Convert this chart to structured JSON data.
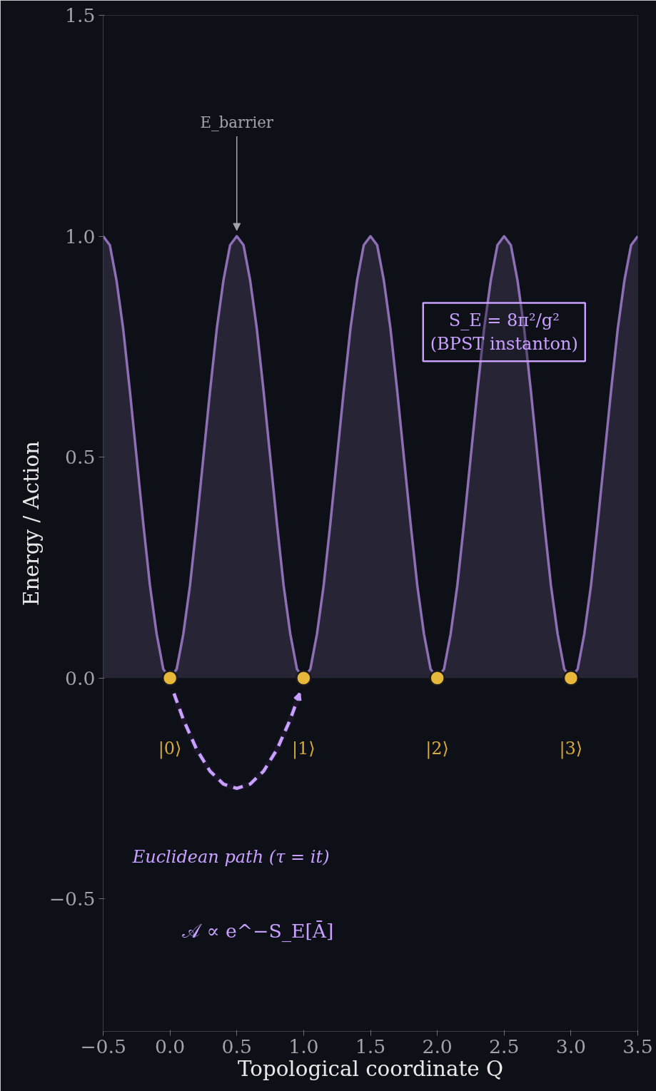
{
  "chart_data": {
    "type": "area",
    "xlabel": "Topological coordinate Q",
    "ylabel": "Energy / Action",
    "xlim": [
      -0.5,
      3.5
    ],
    "ylim": [
      -0.8,
      1.5
    ],
    "xticks": [
      {
        "value": -0.5,
        "label": "−0.5"
      },
      {
        "value": 0,
        "label": "0.0"
      },
      0.5,
      {
        "value": 1,
        "label": "1.0"
      },
      1.5,
      {
        "value": 2,
        "label": "2.0"
      },
      2.5,
      {
        "value": 3,
        "label": "3.0"
      },
      3.5
    ],
    "yticks": [
      {
        "value": -0.5,
        "label": "−0.5"
      },
      {
        "value": 0,
        "label": "0.0"
      },
      0.5,
      {
        "value": 1,
        "label": "1.0"
      },
      1.5
    ],
    "series": [
      {
        "color": "#8e6fb5",
        "x": [
          -0.5,
          -0.45,
          -0.4,
          -0.35,
          -0.3,
          -0.25,
          -0.2,
          -0.15,
          -0.1,
          -0.05,
          0,
          0.05,
          0.1,
          0.15,
          0.2,
          0.25,
          0.3,
          0.35,
          0.4,
          0.45,
          0.5,
          0.55,
          0.6,
          0.65,
          0.7,
          0.75,
          0.8,
          0.85,
          0.9,
          0.95,
          1,
          1.05,
          1.1,
          1.15,
          1.2,
          1.25,
          1.3,
          1.35,
          1.4,
          1.45,
          1.5,
          1.55,
          1.6,
          1.65,
          1.7,
          1.75,
          1.8,
          1.85,
          1.9,
          1.95,
          2,
          2.05,
          2.1,
          2.15,
          2.2,
          2.25,
          2.3,
          2.35,
          2.4,
          2.45,
          2.5,
          2.55,
          2.6,
          2.65,
          2.7,
          2.75,
          2.8,
          2.85,
          2.9,
          2.95,
          3,
          3.05,
          3.1,
          3.15,
          3.2,
          3.25,
          3.3,
          3.35,
          3.4,
          3.45,
          3.5
        ],
        "values": [
          1,
          0.98,
          0.9,
          0.79,
          0.65,
          0.5,
          0.35,
          0.21,
          0.1,
          0.02,
          0,
          0.02,
          0.1,
          0.21,
          0.35,
          0.5,
          0.65,
          0.79,
          0.9,
          0.98,
          1,
          0.98,
          0.9,
          0.79,
          0.65,
          0.5,
          0.35,
          0.21,
          0.1,
          0.02,
          0,
          0.02,
          0.1,
          0.21,
          0.35,
          0.5,
          0.65,
          0.79,
          0.9,
          0.98,
          1,
          0.98,
          0.9,
          0.79,
          0.65,
          0.5,
          0.35,
          0.21,
          0.1,
          0.02,
          0,
          0.02,
          0.1,
          0.21,
          0.35,
          0.5,
          0.65,
          0.79,
          0.9,
          0.98,
          1,
          0.98,
          0.9,
          0.79,
          0.65,
          0.5,
          0.35,
          0.21,
          0.1,
          0.02,
          0,
          0.02,
          0.1,
          0.21,
          0.35,
          0.5,
          0.65,
          0.79,
          0.9,
          0.98,
          1
        ]
      },
      {
        "type": "line",
        "line_style": "dashed",
        "color": "#c9a0ff",
        "x": [
          0.03,
          0.1,
          0.2,
          0.3,
          0.4,
          0.5,
          0.6,
          0.7,
          0.8,
          0.9,
          0.97
        ],
        "values": [
          -0.035,
          -0.094,
          -0.162,
          -0.211,
          -0.24,
          -0.25,
          -0.24,
          -0.211,
          -0.162,
          -0.094,
          -0.035
        ]
      },
      {
        "type": "scatter",
        "marker": "circle",
        "color": "#e8b83a",
        "x": [
          0,
          1,
          2,
          3
        ],
        "values": [
          0,
          0,
          0,
          0
        ]
      }
    ],
    "annotations": [
      {
        "text": "E_barrier",
        "x": 0.5,
        "y": 1.0
      },
      "S_E = 8π²/g²\n(BPST instanton)",
      "|0⟩",
      "|1⟩",
      "|2⟩",
      "|3⟩",
      "Euclidean path (τ = it)",
      "𝒜 ∝ e^−S_E[Ā]"
    ]
  }
}
